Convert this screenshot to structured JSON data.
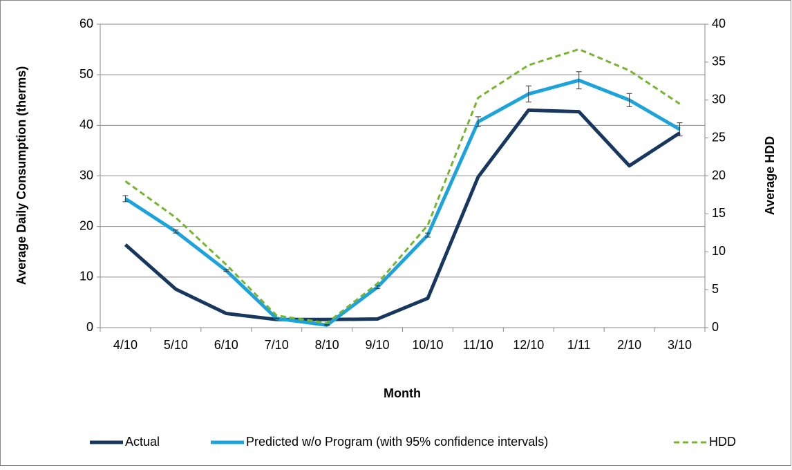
{
  "chart_data": {
    "type": "line",
    "categories": [
      "4/10",
      "5/10",
      "6/10",
      "7/10",
      "8/10",
      "9/10",
      "10/10",
      "11/10",
      "12/10",
      "1/11",
      "2/10",
      "3/10"
    ],
    "series": [
      {
        "name": "Actual",
        "color": "#17375e",
        "values": [
          16.4,
          7.6,
          2.8,
          1.6,
          1.6,
          1.7,
          5.8,
          29.8,
          43,
          42.7,
          32,
          38.5
        ]
      },
      {
        "name": "Predicted w/o Program (with 95% confidence intervals)",
        "color": "#1ca3dc",
        "values": [
          25.5,
          19,
          11.3,
          1.8,
          0.5,
          8,
          18.3,
          40.7,
          46.2,
          48.9,
          45,
          39.2
        ],
        "errors": [
          0.6,
          0.3,
          0.2,
          0.1,
          0.1,
          0.3,
          0.4,
          1,
          1.6,
          1.7,
          1.3,
          1.3
        ]
      },
      {
        "name": "HDD",
        "color": "#77b52f",
        "dashed": true,
        "axis": "y2",
        "values": [
          19.3,
          14.5,
          8.3,
          1.6,
          0.6,
          5.8,
          13.5,
          30.3,
          34.6,
          36.7,
          33.9,
          29.5
        ]
      }
    ],
    "ylabel": "Average Daily Consumption (therms)",
    "y2label": "Average HDD",
    "xlabel": "Month",
    "ylim": [
      0,
      60
    ],
    "yticks": [
      0,
      10,
      20,
      30,
      40,
      50,
      60
    ],
    "y2lim": [
      0,
      40
    ],
    "y2ticks": [
      0,
      5,
      10,
      15,
      20,
      25,
      30,
      35,
      40
    ],
    "grid": true,
    "legend": "bottom"
  }
}
